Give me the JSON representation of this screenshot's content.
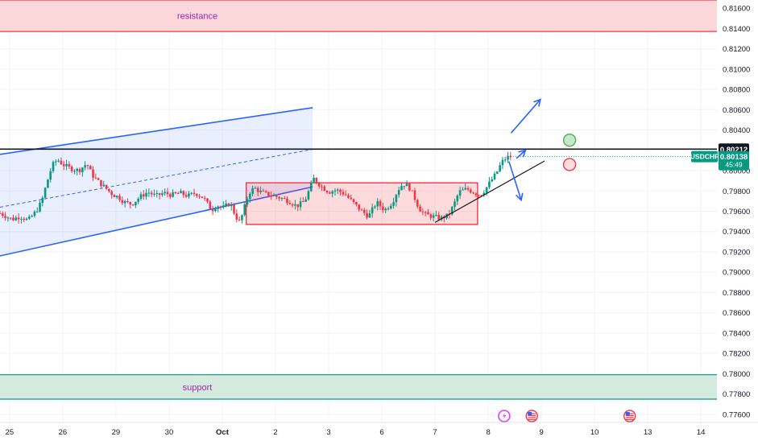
{
  "chart_data": {
    "type": "candlestick",
    "symbol": "USDCHF",
    "y_axis": {
      "position": "right",
      "range": [
        0.7752,
        0.8168
      ],
      "ticks": [
        "0.81600",
        "0.81400",
        "0.81200",
        "0.81000",
        "0.80800",
        "0.80600",
        "0.80400",
        "0.80000",
        "0.79800",
        "0.79600",
        "0.79400",
        "0.79200",
        "0.79000",
        "0.78800",
        "0.78600",
        "0.78400",
        "0.78200",
        "0.78000",
        "0.77800",
        "0.77600"
      ]
    },
    "x_axis": {
      "position": "bottom",
      "ticks": [
        "25",
        "26",
        "29",
        "30",
        "Oct",
        "2",
        "3",
        "6",
        "7",
        "8",
        "9",
        "10",
        "13",
        "14"
      ],
      "tick_index": [
        0,
        1,
        2,
        3,
        4,
        5,
        6,
        7,
        8,
        9,
        10,
        11,
        12,
        13
      ],
      "index_range": [
        -0.18,
        13.3
      ]
    },
    "grid": true,
    "price_labels": {
      "level": "0.80212",
      "symbol": "USDCHF",
      "last": "0.80138",
      "countdown": "45:49",
      "level_value": 0.80212,
      "last_value": 0.80138
    },
    "zones": [
      {
        "label": "resistance",
        "y_from": 0.8137,
        "y_to": 0.8168,
        "color": "#f23645",
        "fill": "#fdd8db"
      },
      {
        "label": "support",
        "y_from": 0.7775,
        "y_to": 0.7799,
        "color": "#089981",
        "fill": "#d5ebde"
      }
    ],
    "horizontal_line": {
      "y": 0.80212,
      "color": "#131722"
    },
    "channel": {
      "x_start": -0.18,
      "x_end": 5.7,
      "upper": [
        0.8016,
        0.8062
      ],
      "lower": [
        0.7916,
        0.7984
      ],
      "middle": [
        0.7964,
        0.8021
      ],
      "color": "#2962ff"
    },
    "range_box": {
      "x_from": 4.45,
      "x_to": 8.8,
      "y_from": 0.7947,
      "y_to": 0.7988,
      "color": "#f23645"
    },
    "trendline": {
      "points": [
        [
          8.0,
          0.7949
        ],
        [
          10.06,
          0.80095
        ]
      ],
      "color": "#131722"
    },
    "arrows": [
      {
        "from": [
          9.43,
          0.8037
        ],
        "to": [
          9.98,
          0.807
        ],
        "color": "#2962ff"
      },
      {
        "from": [
          9.39,
          0.8009
        ],
        "to": [
          9.62,
          0.7971
        ],
        "color": "#2962ff"
      },
      {
        "from": [
          9.53,
          0.8012
        ],
        "to": [
          9.7,
          0.802
        ],
        "color": "#2962ff"
      }
    ],
    "scenario_markers": [
      {
        "x": 10.53,
        "y": 0.803,
        "stroke": "#4caf50",
        "fill": "#c8e6c9"
      },
      {
        "x": 10.53,
        "y": 0.8006,
        "stroke": "#f23645",
        "fill": "#fddfe2"
      }
    ],
    "event_icons": [
      {
        "x": 9.3,
        "kind": "lightning"
      },
      {
        "x": 9.82,
        "kind": "flag"
      },
      {
        "x": 11.66,
        "kind": "flag"
      }
    ],
    "close_path": [
      [
        -0.18,
        0.7958
      ],
      [
        0.05,
        0.7952
      ],
      [
        0.2,
        0.7955
      ],
      [
        0.35,
        0.7951
      ],
      [
        0.5,
        0.796
      ],
      [
        0.6,
        0.7969
      ],
      [
        0.7,
        0.7988
      ],
      [
        0.8,
        0.8005
      ],
      [
        0.9,
        0.8011
      ],
      [
        1.0,
        0.8006
      ],
      [
        1.15,
        0.8002
      ],
      [
        1.3,
        0.8
      ],
      [
        1.45,
        0.8007
      ],
      [
        1.55,
        0.7996
      ],
      [
        1.65,
        0.799
      ],
      [
        1.8,
        0.7983
      ],
      [
        1.95,
        0.7976
      ],
      [
        2.05,
        0.7974
      ],
      [
        2.15,
        0.7969
      ],
      [
        2.3,
        0.7967
      ],
      [
        2.45,
        0.7974
      ],
      [
        2.6,
        0.7979
      ],
      [
        2.75,
        0.7975
      ],
      [
        2.9,
        0.7978
      ],
      [
        3.05,
        0.7976
      ],
      [
        3.2,
        0.7978
      ],
      [
        3.35,
        0.7975
      ],
      [
        3.5,
        0.7978
      ],
      [
        3.65,
        0.7973
      ],
      [
        3.8,
        0.7961
      ],
      [
        3.9,
        0.7966
      ],
      [
        4.0,
        0.7963
      ],
      [
        4.15,
        0.7968
      ],
      [
        4.25,
        0.7955
      ],
      [
        4.33,
        0.7949
      ],
      [
        4.4,
        0.7961
      ],
      [
        4.5,
        0.7978
      ],
      [
        4.6,
        0.7983
      ],
      [
        4.75,
        0.7978
      ],
      [
        4.9,
        0.7976
      ],
      [
        5.1,
        0.7973
      ],
      [
        5.25,
        0.797
      ],
      [
        5.4,
        0.7965
      ],
      [
        5.55,
        0.797
      ],
      [
        5.65,
        0.7983
      ],
      [
        5.72,
        0.7992
      ],
      [
        5.85,
        0.7985
      ],
      [
        6.0,
        0.7979
      ],
      [
        6.15,
        0.7981
      ],
      [
        6.3,
        0.7977
      ],
      [
        6.45,
        0.7969
      ],
      [
        6.6,
        0.7961
      ],
      [
        6.75,
        0.7955
      ],
      [
        6.9,
        0.7969
      ],
      [
        7.05,
        0.7961
      ],
      [
        7.2,
        0.7969
      ],
      [
        7.3,
        0.7981
      ],
      [
        7.4,
        0.7987
      ],
      [
        7.5,
        0.7985
      ],
      [
        7.6,
        0.7975
      ],
      [
        7.7,
        0.7963
      ],
      [
        7.8,
        0.7957
      ],
      [
        7.95,
        0.7955
      ],
      [
        8.1,
        0.7953
      ],
      [
        8.25,
        0.7956
      ],
      [
        8.35,
        0.7966
      ],
      [
        8.45,
        0.7979
      ],
      [
        8.6,
        0.7982
      ],
      [
        8.75,
        0.7978
      ],
      [
        8.85,
        0.7976
      ],
      [
        8.95,
        0.7982
      ],
      [
        9.05,
        0.799
      ],
      [
        9.15,
        0.7997
      ],
      [
        9.25,
        0.8008
      ],
      [
        9.35,
        0.8013
      ],
      [
        9.42,
        0.80138
      ]
    ]
  }
}
